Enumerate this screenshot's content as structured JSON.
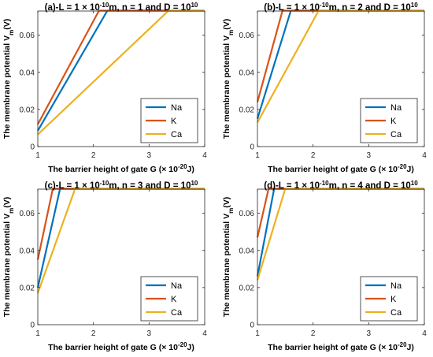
{
  "colors": {
    "Na": "#0072BD",
    "K": "#D95319",
    "Ca": "#EDB120"
  },
  "chart_data": [
    {
      "type": "line",
      "title": {
        "prefix": "(a)-L = 1 ",
        "mid": "10",
        "exp": "-10",
        "suffix": "m, n = 1 and  D = 10",
        "dexp": "10"
      },
      "xlabel": {
        "main": "The barrier height of gate G (",
        "mid": "10",
        "exp": "-20",
        "suffix": "J)"
      },
      "ylabel": {
        "main": "The membrane potential V",
        "sub": "m",
        "suffix": "(V)"
      },
      "xlim": [
        1,
        4
      ],
      "ylim": [
        0,
        0.073
      ],
      "xticks": [
        1,
        2,
        3,
        4
      ],
      "yticks": [
        0,
        0.02,
        0.04,
        0.06
      ],
      "xtick_labels": [
        "1",
        "2",
        "3",
        "4"
      ],
      "ytick_labels": [
        "0",
        "0.02",
        "0.04",
        "0.06"
      ],
      "legend": "bottom-right",
      "series": [
        {
          "name": "Na",
          "x": [
            1,
            2.25,
            4
          ],
          "y": [
            0.0085,
            0.0732,
            0.0732
          ]
        },
        {
          "name": "K",
          "x": [
            1,
            2.1,
            4
          ],
          "y": [
            0.012,
            0.0732,
            0.0732
          ]
        },
        {
          "name": "Ca",
          "x": [
            1,
            3.35,
            4
          ],
          "y": [
            0.0065,
            0.0732,
            0.0732
          ]
        }
      ]
    },
    {
      "type": "line",
      "title": {
        "prefix": "(b)-L = 1 ",
        "mid": "10",
        "exp": "-10",
        "suffix": "m, n = 2 and  D = 10",
        "dexp": "10"
      },
      "xlabel": {
        "main": "The barrier height of gate G (",
        "mid": "10",
        "exp": "-20",
        "suffix": "J)"
      },
      "ylabel": {
        "main": "The membrane potential V",
        "sub": "m",
        "suffix": "(V)"
      },
      "xlim": [
        1,
        4
      ],
      "ylim": [
        0,
        0.073
      ],
      "xticks": [
        1,
        2,
        3,
        4
      ],
      "yticks": [
        0,
        0.02,
        0.04,
        0.06
      ],
      "xtick_labels": [
        "1",
        "2",
        "3",
        "4"
      ],
      "ytick_labels": [
        "0",
        "0.02",
        "0.04",
        "0.06"
      ],
      "legend": "bottom-right",
      "series": [
        {
          "name": "Na",
          "x": [
            1,
            1.6,
            4
          ],
          "y": [
            0.015,
            0.0732,
            0.0732
          ]
        },
        {
          "name": "K",
          "x": [
            1,
            1.45,
            4
          ],
          "y": [
            0.024,
            0.0732,
            0.0732
          ]
        },
        {
          "name": "Ca",
          "x": [
            1,
            2.1,
            4
          ],
          "y": [
            0.013,
            0.0732,
            0.0732
          ]
        }
      ]
    },
    {
      "type": "line",
      "title": {
        "prefix": "(c)-L = 1 ",
        "mid": "10",
        "exp": "-10",
        "suffix": "m, n = 3 and  D = 10",
        "dexp": "10"
      },
      "xlabel": {
        "main": "The barrier height of gate G (",
        "mid": "10",
        "exp": "-20",
        "suffix": "J)"
      },
      "ylabel": {
        "main": "The membrane potential V",
        "sub": "m",
        "suffix": "(V)"
      },
      "xlim": [
        1,
        4
      ],
      "ylim": [
        0,
        0.073
      ],
      "xticks": [
        1,
        2,
        3,
        4
      ],
      "yticks": [
        0,
        0.02,
        0.04,
        0.06
      ],
      "xtick_labels": [
        "1",
        "2",
        "3",
        "4"
      ],
      "ytick_labels": [
        "0",
        "0.02",
        "0.04",
        "0.06"
      ],
      "legend": "bottom-right",
      "series": [
        {
          "name": "Na",
          "x": [
            1,
            1.4,
            4
          ],
          "y": [
            0.02,
            0.0732,
            0.0732
          ]
        },
        {
          "name": "K",
          "x": [
            1,
            1.27,
            4
          ],
          "y": [
            0.035,
            0.0732,
            0.0732
          ]
        },
        {
          "name": "Ca",
          "x": [
            1,
            1.67,
            4
          ],
          "y": [
            0.017,
            0.0732,
            0.0732
          ]
        }
      ]
    },
    {
      "type": "line",
      "title": {
        "prefix": "(d)-L = 1 ",
        "mid": "10",
        "exp": "-10",
        "suffix": "m, n = 4 and  D = 10",
        "dexp": "10"
      },
      "xlabel": {
        "main": "The barrier height of gate G (",
        "mid": "10",
        "exp": "-20",
        "suffix": "J)"
      },
      "ylabel": {
        "main": "The membrane potential V",
        "sub": "m",
        "suffix": "(V)"
      },
      "xlim": [
        1,
        4
      ],
      "ylim": [
        0,
        0.073
      ],
      "xticks": [
        1,
        2,
        3,
        4
      ],
      "yticks": [
        0,
        0.02,
        0.04,
        0.06
      ],
      "xtick_labels": [
        "1",
        "2",
        "3",
        "4"
      ],
      "ytick_labels": [
        "0",
        "0.02",
        "0.04",
        "0.06"
      ],
      "legend": "bottom-right",
      "series": [
        {
          "name": "Na",
          "x": [
            1,
            1.3,
            4
          ],
          "y": [
            0.026,
            0.0732,
            0.0732
          ]
        },
        {
          "name": "K",
          "x": [
            1,
            1.2,
            4
          ],
          "y": [
            0.047,
            0.0732,
            0.0732
          ]
        },
        {
          "name": "Ca",
          "x": [
            1,
            1.5,
            4
          ],
          "y": [
            0.024,
            0.0732,
            0.0732
          ]
        }
      ]
    }
  ]
}
